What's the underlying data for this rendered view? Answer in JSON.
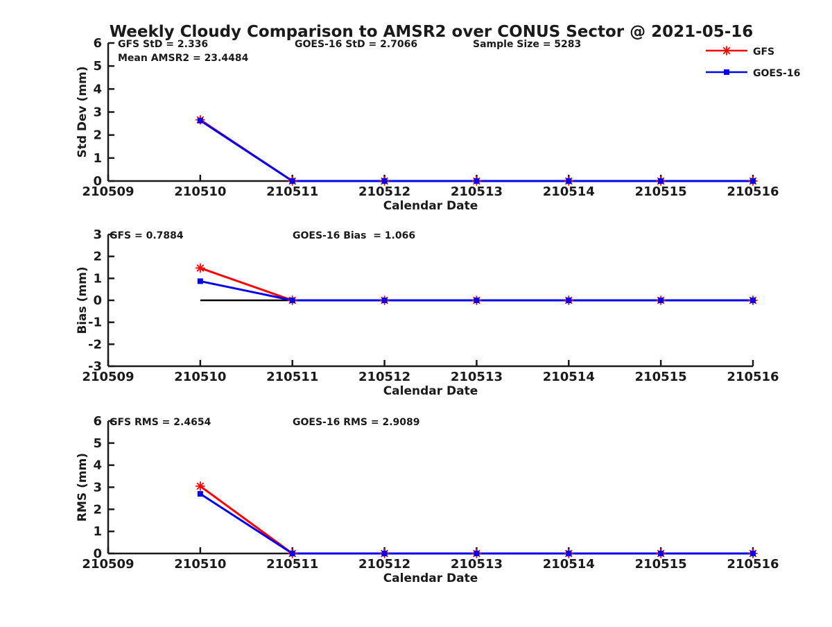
{
  "title": "Weekly Cloudy Comparison to AMSR2 over CONUS Sector @ 2021-05-16",
  "colors": {
    "gfs_red": "#ff0000",
    "goes_blue": "#0000ee",
    "axis": "#1a1a1a",
    "zero_line": "#000000",
    "background": "#ffffff"
  },
  "legend": {
    "items": [
      {
        "label": "GFS",
        "color": "#ff0000",
        "marker": "asterisk"
      },
      {
        "label": "GOES-16",
        "color": "#0000ee",
        "marker": "square"
      }
    ]
  },
  "chart_data": [
    {
      "type": "line",
      "panel": "std-dev",
      "ylabel": "Std Dev (mm)",
      "xlabel": "Calendar Date",
      "ylim": [
        0,
        6
      ],
      "yticks": [
        0,
        1,
        2,
        3,
        4,
        5,
        6
      ],
      "categories": [
        "210509",
        "210510",
        "210511",
        "210512",
        "210513",
        "210514",
        "210515",
        "210516"
      ],
      "grid": false,
      "annotations": [
        {
          "slot": "top-left",
          "text": "GFS StD = 2.336"
        },
        {
          "slot": "top-left-2",
          "text": "Mean AMSR2 = 23.4484"
        },
        {
          "slot": "top-mid",
          "text": "GOES-16 StD = 2.7066"
        },
        {
          "slot": "top-right",
          "text": "Sample Size = 5283"
        }
      ],
      "series": [
        {
          "name": "GFS",
          "color": "#ff0000",
          "marker": "asterisk",
          "x": [
            "210510",
            "210511",
            "210512",
            "210513",
            "210514",
            "210515",
            "210516"
          ],
          "values": [
            2.66,
            0,
            0,
            0,
            0,
            0,
            0
          ]
        },
        {
          "name": "GOES-16",
          "color": "#0000ee",
          "marker": "square",
          "x": [
            "210510",
            "210511",
            "210512",
            "210513",
            "210514",
            "210515",
            "210516"
          ],
          "values": [
            2.63,
            0,
            0,
            0,
            0,
            0,
            0
          ]
        }
      ]
    },
    {
      "type": "line",
      "panel": "bias",
      "ylabel": "Bias (mm)",
      "xlabel": "Calendar Date",
      "ylim": [
        -3,
        3
      ],
      "yticks": [
        3,
        2,
        1,
        0,
        -1,
        -2,
        -3
      ],
      "categories": [
        "210509",
        "210510",
        "210511",
        "210512",
        "210513",
        "210514",
        "210515",
        "210516"
      ],
      "grid": false,
      "zero_line": {
        "from": "210510",
        "to": "210516",
        "value": 0
      },
      "annotations": [
        {
          "slot": "top-left",
          "text": "GFS = 0.7884"
        },
        {
          "slot": "top-mid",
          "text": "GOES-16 Bias  = 1.066"
        }
      ],
      "series": [
        {
          "name": "GFS",
          "color": "#ff0000",
          "marker": "asterisk",
          "x": [
            "210510",
            "210511",
            "210512",
            "210513",
            "210514",
            "210515",
            "210516"
          ],
          "values": [
            1.47,
            0,
            0,
            0,
            0,
            0,
            0
          ]
        },
        {
          "name": "GOES-16",
          "color": "#0000ee",
          "marker": "square",
          "x": [
            "210510",
            "210511",
            "210512",
            "210513",
            "210514",
            "210515",
            "210516"
          ],
          "values": [
            0.87,
            0,
            0,
            0,
            0,
            0,
            0
          ]
        }
      ]
    },
    {
      "type": "line",
      "panel": "rms",
      "ylabel": "RMS (mm)",
      "xlabel": "Calendar Date",
      "ylim": [
        0,
        6
      ],
      "yticks": [
        0,
        1,
        2,
        3,
        4,
        5,
        6
      ],
      "categories": [
        "210509",
        "210510",
        "210511",
        "210512",
        "210513",
        "210514",
        "210515",
        "210516"
      ],
      "grid": false,
      "annotations": [
        {
          "slot": "top-left",
          "text": "GFS RMS = 2.4654"
        },
        {
          "slot": "top-mid",
          "text": "GOES-16 RMS = 2.9089"
        }
      ],
      "series": [
        {
          "name": "GFS",
          "color": "#ff0000",
          "marker": "asterisk",
          "x": [
            "210510",
            "210511",
            "210512",
            "210513",
            "210514",
            "210515",
            "210516"
          ],
          "values": [
            3.05,
            0,
            0,
            0,
            0,
            0,
            0
          ]
        },
        {
          "name": "GOES-16",
          "color": "#0000ee",
          "marker": "square",
          "x": [
            "210510",
            "210511",
            "210512",
            "210513",
            "210514",
            "210515",
            "210516"
          ],
          "values": [
            2.7,
            0,
            0,
            0,
            0,
            0,
            0
          ]
        }
      ]
    }
  ]
}
